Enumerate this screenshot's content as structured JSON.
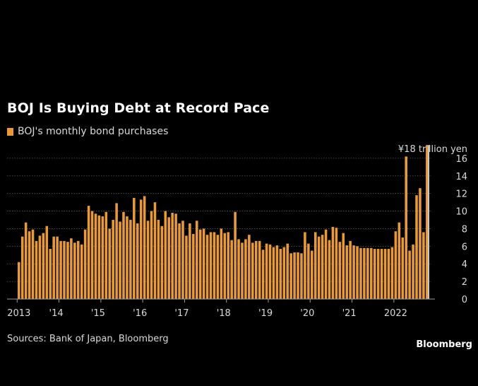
{
  "colors": {
    "bar": "#e89a3a",
    "highlight": "#c8c8c8",
    "grid": "#5a5a5a",
    "text": "#d9d9d9",
    "background": "#000000"
  },
  "header": {
    "title": "BOJ Is Buying Debt at Record Pace",
    "legend_label": "BOJ's monthly bond purchases"
  },
  "footer": {
    "source": "Sources: Bank of Japan, Bloomberg",
    "brand": "Bloomberg"
  },
  "chart_data": {
    "type": "bar",
    "title": "BOJ Is Buying Debt at Record Pace",
    "unit_label": "¥18 trillion yen",
    "ylim": [
      0,
      18
    ],
    "yticks": [
      0,
      2,
      4,
      6,
      8,
      10,
      12,
      14,
      16
    ],
    "grid": true,
    "y_axis_side": "right",
    "x_tick_labels": [
      "2013",
      "'14",
      "'15",
      "'16",
      "'17",
      "'18",
      "'19",
      "'20",
      "'21",
      "2022"
    ],
    "x_tick_months_index": [
      0,
      12,
      24,
      36,
      48,
      60,
      72,
      84,
      96,
      108
    ],
    "start": "2013-01",
    "series": [
      {
        "name": "BOJ's monthly bond purchases",
        "values": [
          4.2,
          7.1,
          8.7,
          7.7,
          7.9,
          6.6,
          7.2,
          7.5,
          8.3,
          5.7,
          7.1,
          7.1,
          6.6,
          6.6,
          6.5,
          6.9,
          6.4,
          6.6,
          6.2,
          7.9,
          10.6,
          10.0,
          9.7,
          9.5,
          9.4,
          9.9,
          8.0,
          9.0,
          10.9,
          8.8,
          9.9,
          9.4,
          9.0,
          11.5,
          8.6,
          11.3,
          11.7,
          8.9,
          10.0,
          11.0,
          9.0,
          8.3,
          10.0,
          9.3,
          9.8,
          9.7,
          8.6,
          8.9,
          7.2,
          8.6,
          7.4,
          8.9,
          7.9,
          8.0,
          7.3,
          7.6,
          7.6,
          7.3,
          8.0,
          7.5,
          7.6,
          6.7,
          9.9,
          6.8,
          6.4,
          6.8,
          7.3,
          6.4,
          6.6,
          6.6,
          5.6,
          6.3,
          6.2,
          5.9,
          6.1,
          5.7,
          5.9,
          6.3,
          5.2,
          5.3,
          5.3,
          5.2,
          7.6,
          6.3,
          5.5,
          7.6,
          7.1,
          7.3,
          7.9,
          6.7,
          8.2,
          8.1,
          6.5,
          7.5,
          6.1,
          6.6,
          6.1,
          6.0,
          5.8,
          5.8,
          5.8,
          5.8,
          5.7,
          5.7,
          5.7,
          5.7,
          5.7,
          5.9,
          7.7,
          8.7,
          7.0,
          16.2,
          5.5,
          6.2,
          11.8,
          12.6,
          7.6,
          17.5
        ],
        "highlight_last": true
      }
    ]
  }
}
